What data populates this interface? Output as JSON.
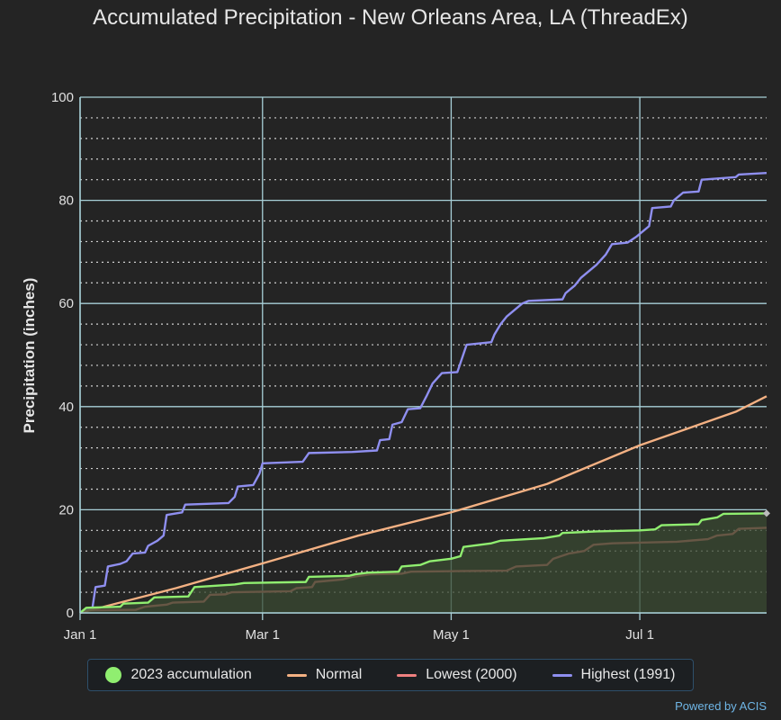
{
  "chart_data": {
    "type": "area",
    "title": "Accumulated Precipitation - New Orleans Area, LA (ThreadEx)",
    "ylabel": "Precipitation (inches)",
    "xlabel": "",
    "ylim": [
      0,
      100
    ],
    "xlim": [
      0,
      222
    ],
    "y_ticks": [
      0,
      20,
      40,
      60,
      80,
      100
    ],
    "x_ticks": [
      {
        "day": 0,
        "label": "Jan 1"
      },
      {
        "day": 59,
        "label": "Mar 1"
      },
      {
        "day": 120,
        "label": "May 1"
      },
      {
        "day": 181,
        "label": "Jul 1"
      }
    ],
    "grid": true,
    "legend_position": "bottom",
    "series": [
      {
        "name": "2023 accumulation",
        "color": "#90ee70",
        "fill": true,
        "points": [
          [
            0,
            0
          ],
          [
            2,
            1
          ],
          [
            13,
            1.2
          ],
          [
            14,
            1.8
          ],
          [
            22,
            2
          ],
          [
            24,
            3
          ],
          [
            35,
            3.2
          ],
          [
            37,
            5
          ],
          [
            50,
            5.5
          ],
          [
            53,
            5.8
          ],
          [
            73,
            6
          ],
          [
            74,
            7
          ],
          [
            87,
            7.2
          ],
          [
            89,
            7.5
          ],
          [
            93,
            7.8
          ],
          [
            103,
            8
          ],
          [
            104,
            9
          ],
          [
            110,
            9.3
          ],
          [
            113,
            10
          ],
          [
            120,
            10.5
          ],
          [
            123,
            11
          ],
          [
            124,
            12.8
          ],
          [
            133,
            13.5
          ],
          [
            136,
            14
          ],
          [
            150,
            14.5
          ],
          [
            155,
            15
          ],
          [
            156,
            15.5
          ],
          [
            167,
            15.8
          ],
          [
            181,
            16
          ],
          [
            186,
            16.2
          ],
          [
            188,
            17
          ],
          [
            200,
            17.2
          ],
          [
            201,
            18
          ],
          [
            206,
            18.5
          ],
          [
            208,
            19.2
          ],
          [
            222,
            19.3
          ]
        ]
      },
      {
        "name": "Normal",
        "color": "#f4b183",
        "fill": false,
        "points": [
          [
            0,
            0
          ],
          [
            31,
            4.8
          ],
          [
            59,
            9.6
          ],
          [
            90,
            15
          ],
          [
            120,
            19.5
          ],
          [
            151,
            25
          ],
          [
            181,
            32.5
          ],
          [
            212,
            39
          ],
          [
            222,
            42
          ]
        ]
      },
      {
        "name": "Lowest (2000)",
        "color": "#f08080",
        "fill": false,
        "points": [
          [
            0,
            0
          ],
          [
            3,
            0.5
          ],
          [
            18,
            0.6
          ],
          [
            21,
            1.2
          ],
          [
            28,
            1.6
          ],
          [
            30,
            2
          ],
          [
            40,
            2.2
          ],
          [
            42,
            3.5
          ],
          [
            47,
            3.6
          ],
          [
            49,
            4
          ],
          [
            68,
            4.2
          ],
          [
            70,
            4.8
          ],
          [
            75,
            5
          ],
          [
            76,
            6
          ],
          [
            85,
            6.5
          ],
          [
            88,
            7
          ],
          [
            94,
            7.5
          ],
          [
            104,
            7.6
          ],
          [
            107,
            8
          ],
          [
            138,
            8.2
          ],
          [
            141,
            9
          ],
          [
            151,
            9.3
          ],
          [
            153,
            10.5
          ],
          [
            158,
            11.5
          ],
          [
            163,
            12
          ],
          [
            166,
            13.2
          ],
          [
            172,
            13.5
          ],
          [
            193,
            13.8
          ],
          [
            203,
            14.3
          ],
          [
            206,
            15
          ],
          [
            211,
            15.3
          ],
          [
            213,
            16.3
          ],
          [
            222,
            16.5
          ]
        ]
      },
      {
        "name": "Highest (1991)",
        "color": "#8f8ff0",
        "fill": false,
        "points": [
          [
            0,
            0
          ],
          [
            2,
            0.5
          ],
          [
            4,
            1
          ],
          [
            5,
            5
          ],
          [
            8,
            5.3
          ],
          [
            9,
            9
          ],
          [
            13,
            9.5
          ],
          [
            15,
            10
          ],
          [
            17,
            11.5
          ],
          [
            21,
            11.7
          ],
          [
            22,
            13
          ],
          [
            25,
            14
          ],
          [
            27,
            15
          ],
          [
            28,
            19
          ],
          [
            33,
            19.5
          ],
          [
            34,
            21
          ],
          [
            48,
            21.3
          ],
          [
            50,
            22.5
          ],
          [
            51,
            24.5
          ],
          [
            56,
            24.8
          ],
          [
            58,
            27
          ],
          [
            59,
            29
          ],
          [
            72,
            29.3
          ],
          [
            74,
            31
          ],
          [
            88,
            31.2
          ],
          [
            96,
            31.5
          ],
          [
            97,
            33.5
          ],
          [
            100,
            33.7
          ],
          [
            101,
            36.5
          ],
          [
            104,
            37
          ],
          [
            106,
            39.5
          ],
          [
            110,
            39.7
          ],
          [
            112,
            42
          ],
          [
            114,
            44.5
          ],
          [
            117,
            46.5
          ],
          [
            122,
            46.7
          ],
          [
            125,
            52
          ],
          [
            133,
            52.5
          ],
          [
            134,
            54
          ],
          [
            136,
            56
          ],
          [
            138,
            57.5
          ],
          [
            140,
            58.5
          ],
          [
            143,
            60
          ],
          [
            145,
            60.5
          ],
          [
            156,
            60.8
          ],
          [
            157,
            62
          ],
          [
            160,
            63.5
          ],
          [
            162,
            65
          ],
          [
            165,
            66.5
          ],
          [
            167,
            67.5
          ],
          [
            170,
            69.5
          ],
          [
            172,
            71.5
          ],
          [
            177,
            71.8
          ],
          [
            180,
            73
          ],
          [
            184,
            75
          ],
          [
            185,
            78.5
          ],
          [
            191,
            78.8
          ],
          [
            192,
            80
          ],
          [
            195,
            81.5
          ],
          [
            200,
            81.7
          ],
          [
            201,
            84
          ],
          [
            212,
            84.5
          ],
          [
            213,
            85
          ],
          [
            222,
            85.3
          ]
        ]
      }
    ]
  },
  "legend": {
    "items": [
      {
        "label": "2023 accumulation",
        "color": "#90ee70",
        "marker": "dot"
      },
      {
        "label": "Normal",
        "color": "#f4b183",
        "marker": "line"
      },
      {
        "label": "Lowest (2000)",
        "color": "#f08080",
        "marker": "line"
      },
      {
        "label": "Highest (1991)",
        "color": "#8f8ff0",
        "marker": "line"
      }
    ]
  },
  "credit": "Powered by ACIS",
  "colors": {
    "background": "#242424",
    "grid_major": "#a8d0d8",
    "grid_minor": "#cfcfcf"
  }
}
